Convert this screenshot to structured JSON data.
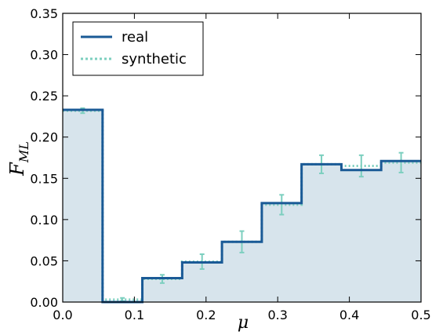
{
  "chart_data": {
    "type": "line",
    "xlabel": "μ",
    "ylabel_main": "F",
    "ylabel_sub": "ML",
    "xlim": [
      0.0,
      0.5
    ],
    "ylim": [
      0.0,
      0.35
    ],
    "xticks": [
      "0.0",
      "0.1",
      "0.2",
      "0.3",
      "0.4",
      "0.5"
    ],
    "yticks": [
      "0.00",
      "0.05",
      "0.10",
      "0.15",
      "0.20",
      "0.25",
      "0.30",
      "0.35"
    ],
    "grid": false,
    "legend_position": "top-left",
    "bin_edges": [
      0.0,
      0.0556,
      0.1111,
      0.1667,
      0.2222,
      0.2778,
      0.3333,
      0.3889,
      0.4444,
      0.5
    ],
    "series": [
      {
        "name": "real",
        "style": "solid-step-filled",
        "color": "#1a5a96",
        "fill": "#d7e4ec",
        "values": [
          0.233,
          0.0,
          0.029,
          0.048,
          0.073,
          0.12,
          0.167,
          0.16,
          0.171
        ]
      },
      {
        "name": "synthetic",
        "style": "dotted-step",
        "color": "#7ccfbf",
        "values": [
          0.232,
          0.003,
          0.028,
          0.049,
          0.073,
          0.118,
          0.167,
          0.165,
          0.169
        ],
        "errors": [
          0.003,
          0.002,
          0.005,
          0.009,
          0.013,
          0.012,
          0.011,
          0.013,
          0.012
        ]
      }
    ]
  }
}
